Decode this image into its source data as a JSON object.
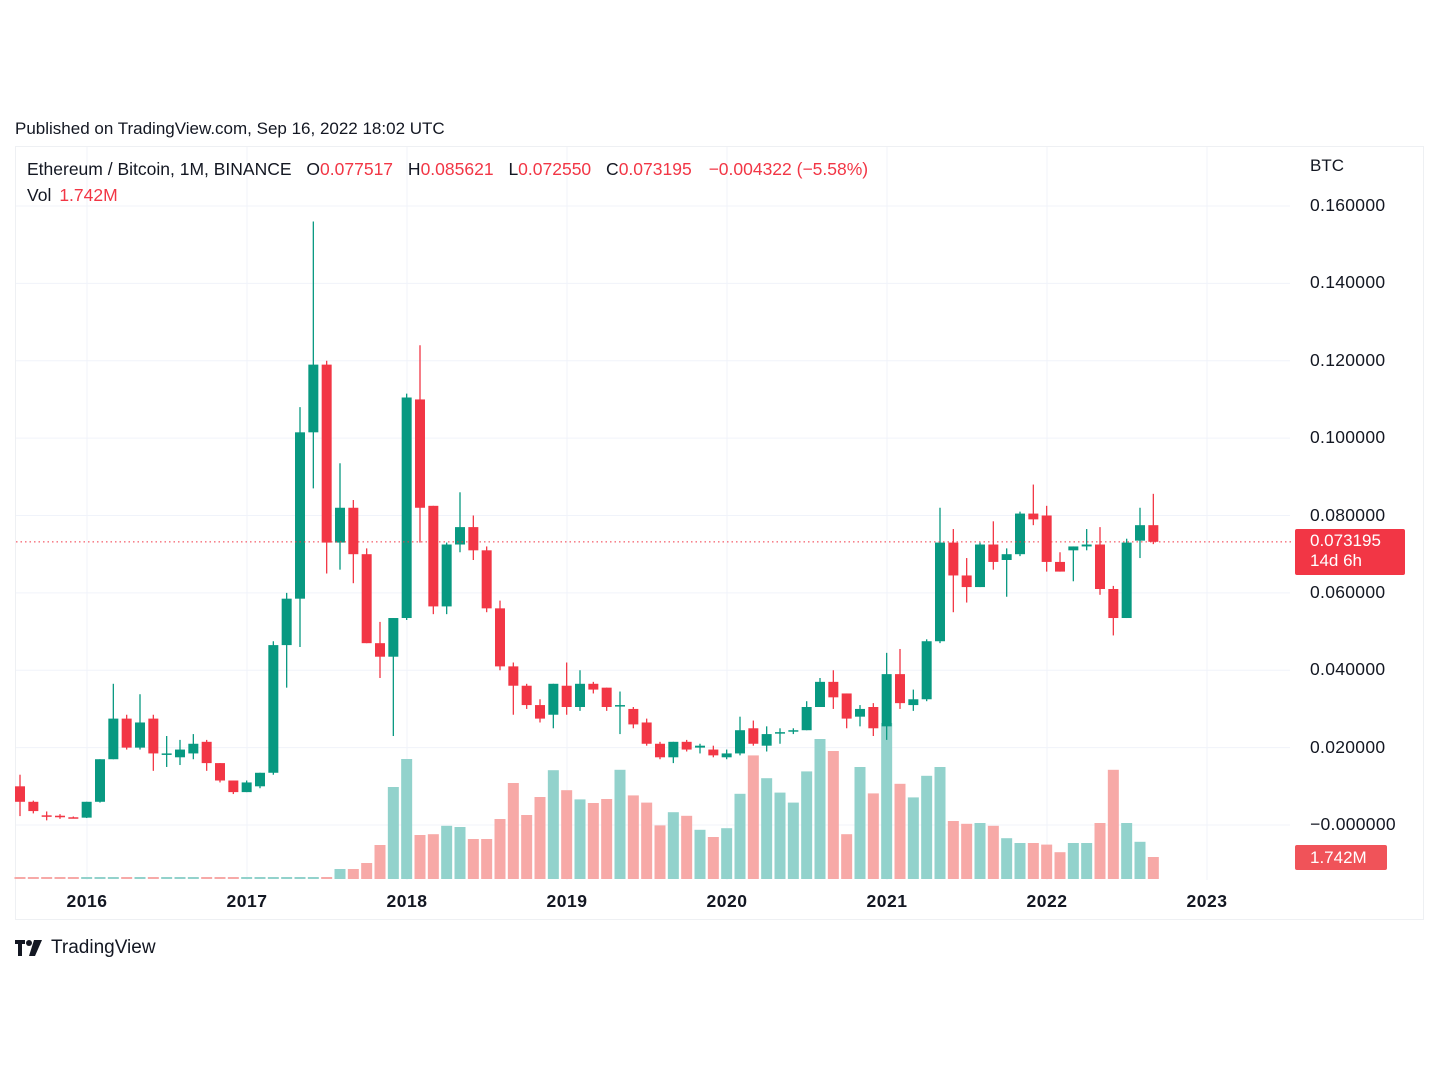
{
  "header": {
    "published": "Published on TradingView.com, Sep 16, 2022 18:02 UTC"
  },
  "legend": {
    "symbol": "Ethereum / Bitcoin, 1M, BINANCE",
    "open_label": "O",
    "open": "0.077517",
    "high_label": "H",
    "high": "0.085621",
    "low_label": "L",
    "low": "0.072550",
    "close_label": "C",
    "close": "0.073195",
    "change": "−0.004322 (−5.58%)",
    "vol_label": "Vol",
    "vol": "1.742M"
  },
  "price_axis": {
    "unit": "BTC",
    "labels": [
      "0.160000",
      "0.140000",
      "0.120000",
      "0.100000",
      "0.080000",
      "0.060000",
      "0.040000",
      "0.020000",
      "−0.000000"
    ],
    "current_price": "0.073195",
    "countdown": "14d 6h",
    "current_volume": "1.742M"
  },
  "time_axis": {
    "labels": [
      "2016",
      "2017",
      "2018",
      "2019",
      "2020",
      "2021",
      "2022",
      "2023"
    ]
  },
  "footer": {
    "brand": "TradingView"
  },
  "colors": {
    "up": "#089981",
    "down": "#f23645",
    "up_vol": "#92d2cc",
    "down_vol": "#f7a9a7",
    "grid": "#f0f3fa",
    "price_line": "#f23645"
  },
  "chart_data": {
    "type": "candlestick",
    "title": "Ethereum / Bitcoin, 1M, BINANCE",
    "ylabel": "BTC",
    "ylim": [
      -0.005,
      0.165
    ],
    "grid": true,
    "start": "2015-08",
    "interval": "1M",
    "x_ticks": [
      "2016",
      "2017",
      "2018",
      "2019",
      "2020",
      "2021",
      "2022",
      "2023"
    ],
    "candles": [
      {
        "o": 0.01,
        "h": 0.013,
        "l": 0.0023,
        "c": 0.006,
        "v": 0.05
      },
      {
        "o": 0.006,
        "h": 0.0063,
        "l": 0.003,
        "c": 0.0036,
        "v": 0.05
      },
      {
        "o": 0.0025,
        "h": 0.0035,
        "l": 0.0012,
        "c": 0.0024,
        "v": 0.05
      },
      {
        "o": 0.0024,
        "h": 0.0028,
        "l": 0.0016,
        "c": 0.002,
        "v": 0.05
      },
      {
        "o": 0.002,
        "h": 0.0022,
        "l": 0.0018,
        "c": 0.0019,
        "v": 0.05
      },
      {
        "o": 0.0019,
        "h": 0.006,
        "l": 0.0018,
        "c": 0.006,
        "v": 0.05
      },
      {
        "o": 0.006,
        "h": 0.017,
        "l": 0.0058,
        "c": 0.017,
        "v": 0.05
      },
      {
        "o": 0.017,
        "h": 0.0365,
        "l": 0.017,
        "c": 0.0275,
        "v": 0.05
      },
      {
        "o": 0.0275,
        "h": 0.0285,
        "l": 0.0195,
        "c": 0.02,
        "v": 0.05
      },
      {
        "o": 0.02,
        "h": 0.0338,
        "l": 0.0195,
        "c": 0.0265,
        "v": 0.05
      },
      {
        "o": 0.0275,
        "h": 0.0285,
        "l": 0.014,
        "c": 0.0185,
        "v": 0.05
      },
      {
        "o": 0.0185,
        "h": 0.023,
        "l": 0.015,
        "c": 0.0185,
        "v": 0.05
      },
      {
        "o": 0.0175,
        "h": 0.022,
        "l": 0.0155,
        "c": 0.0195,
        "v": 0.05
      },
      {
        "o": 0.0185,
        "h": 0.0235,
        "l": 0.017,
        "c": 0.021,
        "v": 0.05
      },
      {
        "o": 0.0215,
        "h": 0.022,
        "l": 0.014,
        "c": 0.016,
        "v": 0.05
      },
      {
        "o": 0.016,
        "h": 0.016,
        "l": 0.011,
        "c": 0.0115,
        "v": 0.05
      },
      {
        "o": 0.0115,
        "h": 0.011,
        "l": 0.008,
        "c": 0.0085,
        "v": 0.05
      },
      {
        "o": 0.0085,
        "h": 0.0115,
        "l": 0.0085,
        "c": 0.011,
        "v": 0.05
      },
      {
        "o": 0.01,
        "h": 0.0135,
        "l": 0.0095,
        "c": 0.0135,
        "v": 0.05
      },
      {
        "o": 0.0135,
        "h": 0.0475,
        "l": 0.013,
        "c": 0.0465,
        "v": 0.05
      },
      {
        "o": 0.0465,
        "h": 0.06,
        "l": 0.0355,
        "c": 0.0585,
        "v": 0.05
      },
      {
        "o": 0.0585,
        "h": 0.108,
        "l": 0.046,
        "c": 0.1015,
        "v": 0.05
      },
      {
        "o": 0.1015,
        "h": 0.156,
        "l": 0.087,
        "c": 0.119,
        "v": 0.05
      },
      {
        "o": 0.119,
        "h": 0.12,
        "l": 0.065,
        "c": 0.073,
        "v": 0.05
      },
      {
        "o": 0.073,
        "h": 0.0935,
        "l": 0.066,
        "c": 0.082,
        "v": 0.25
      },
      {
        "o": 0.082,
        "h": 0.084,
        "l": 0.0625,
        "c": 0.07,
        "v": 0.25
      },
      {
        "o": 0.07,
        "h": 0.0715,
        "l": 0.047,
        "c": 0.047,
        "v": 0.4
      },
      {
        "o": 0.047,
        "h": 0.0525,
        "l": 0.038,
        "c": 0.0435,
        "v": 0.85
      },
      {
        "o": 0.0435,
        "h": 0.0535,
        "l": 0.023,
        "c": 0.0535,
        "v": 2.3
      },
      {
        "o": 0.0535,
        "h": 0.1115,
        "l": 0.053,
        "c": 0.1105,
        "v": 3.0
      },
      {
        "o": 0.11,
        "h": 0.124,
        "l": 0.073,
        "c": 0.082,
        "v": 1.1
      },
      {
        "o": 0.0825,
        "h": 0.0825,
        "l": 0.0545,
        "c": 0.0565,
        "v": 1.12
      },
      {
        "o": 0.0565,
        "h": 0.073,
        "l": 0.0545,
        "c": 0.0725,
        "v": 1.33
      },
      {
        "o": 0.0725,
        "h": 0.086,
        "l": 0.0705,
        "c": 0.077,
        "v": 1.3
      },
      {
        "o": 0.077,
        "h": 0.08,
        "l": 0.0685,
        "c": 0.071,
        "v": 1.0
      },
      {
        "o": 0.071,
        "h": 0.072,
        "l": 0.055,
        "c": 0.056,
        "v": 1.0
      },
      {
        "o": 0.056,
        "h": 0.058,
        "l": 0.04,
        "c": 0.041,
        "v": 1.5
      },
      {
        "o": 0.041,
        "h": 0.042,
        "l": 0.0285,
        "c": 0.036,
        "v": 2.4
      },
      {
        "o": 0.036,
        "h": 0.0365,
        "l": 0.03,
        "c": 0.031,
        "v": 1.6
      },
      {
        "o": 0.031,
        "h": 0.0325,
        "l": 0.0265,
        "c": 0.0275,
        "v": 2.05
      },
      {
        "o": 0.0285,
        "h": 0.0365,
        "l": 0.025,
        "c": 0.0365,
        "v": 2.72
      },
      {
        "o": 0.036,
        "h": 0.042,
        "l": 0.0285,
        "c": 0.0305,
        "v": 2.22
      },
      {
        "o": 0.0305,
        "h": 0.04,
        "l": 0.0295,
        "c": 0.0365,
        "v": 1.99
      },
      {
        "o": 0.0365,
        "h": 0.037,
        "l": 0.034,
        "c": 0.035,
        "v": 1.9
      },
      {
        "o": 0.0355,
        "h": 0.034,
        "l": 0.0295,
        "c": 0.0305,
        "v": 2.0
      },
      {
        "o": 0.031,
        "h": 0.0345,
        "l": 0.0235,
        "c": 0.031,
        "v": 2.73
      },
      {
        "o": 0.03,
        "h": 0.0305,
        "l": 0.025,
        "c": 0.026,
        "v": 2.09
      },
      {
        "o": 0.0265,
        "h": 0.0275,
        "l": 0.0205,
        "c": 0.021,
        "v": 1.91
      },
      {
        "o": 0.021,
        "h": 0.0215,
        "l": 0.017,
        "c": 0.0175,
        "v": 1.34
      },
      {
        "o": 0.0175,
        "h": 0.0215,
        "l": 0.016,
        "c": 0.0215,
        "v": 1.67
      },
      {
        "o": 0.0215,
        "h": 0.022,
        "l": 0.019,
        "c": 0.0195,
        "v": 1.58
      },
      {
        "o": 0.02,
        "h": 0.021,
        "l": 0.0185,
        "c": 0.0205,
        "v": 1.23
      },
      {
        "o": 0.0195,
        "h": 0.0205,
        "l": 0.0175,
        "c": 0.018,
        "v": 1.05
      },
      {
        "o": 0.0175,
        "h": 0.0195,
        "l": 0.017,
        "c": 0.0185,
        "v": 1.27
      },
      {
        "o": 0.0185,
        "h": 0.028,
        "l": 0.018,
        "c": 0.0245,
        "v": 2.13
      },
      {
        "o": 0.025,
        "h": 0.027,
        "l": 0.0205,
        "c": 0.021,
        "v": 3.09
      },
      {
        "o": 0.0205,
        "h": 0.0255,
        "l": 0.019,
        "c": 0.0235,
        "v": 2.52
      },
      {
        "o": 0.024,
        "h": 0.025,
        "l": 0.021,
        "c": 0.024,
        "v": 2.16
      },
      {
        "o": 0.0245,
        "h": 0.025,
        "l": 0.0235,
        "c": 0.0245,
        "v": 1.91
      },
      {
        "o": 0.0245,
        "h": 0.032,
        "l": 0.0245,
        "c": 0.0305,
        "v": 2.69
      },
      {
        "o": 0.0305,
        "h": 0.038,
        "l": 0.0305,
        "c": 0.037,
        "v": 3.5
      },
      {
        "o": 0.037,
        "h": 0.04,
        "l": 0.03,
        "c": 0.033,
        "v": 3.2
      },
      {
        "o": 0.034,
        "h": 0.034,
        "l": 0.025,
        "c": 0.0275,
        "v": 1.12
      },
      {
        "o": 0.028,
        "h": 0.031,
        "l": 0.0255,
        "c": 0.03,
        "v": 2.8
      },
      {
        "o": 0.0305,
        "h": 0.0315,
        "l": 0.023,
        "c": 0.025,
        "v": 2.14
      },
      {
        "o": 0.0255,
        "h": 0.0445,
        "l": 0.022,
        "c": 0.039,
        "v": 3.9
      },
      {
        "o": 0.039,
        "h": 0.0455,
        "l": 0.03,
        "c": 0.0315,
        "v": 2.38
      },
      {
        "o": 0.031,
        "h": 0.035,
        "l": 0.0295,
        "c": 0.0325,
        "v": 2.04
      },
      {
        "o": 0.0325,
        "h": 0.048,
        "l": 0.032,
        "c": 0.0475,
        "v": 2.58
      },
      {
        "o": 0.0475,
        "h": 0.082,
        "l": 0.047,
        "c": 0.073,
        "v": 2.8
      },
      {
        "o": 0.073,
        "h": 0.0765,
        "l": 0.055,
        "c": 0.0645,
        "v": 1.45
      },
      {
        "o": 0.0645,
        "h": 0.069,
        "l": 0.0575,
        "c": 0.0615,
        "v": 1.38
      },
      {
        "o": 0.0615,
        "h": 0.073,
        "l": 0.0615,
        "c": 0.0725,
        "v": 1.4
      },
      {
        "o": 0.0725,
        "h": 0.0785,
        "l": 0.066,
        "c": 0.068,
        "v": 1.33
      },
      {
        "o": 0.0685,
        "h": 0.0715,
        "l": 0.059,
        "c": 0.07,
        "v": 1.02
      },
      {
        "o": 0.07,
        "h": 0.081,
        "l": 0.0695,
        "c": 0.0805,
        "v": 0.9
      },
      {
        "o": 0.0805,
        "h": 0.088,
        "l": 0.0775,
        "c": 0.079,
        "v": 0.9
      },
      {
        "o": 0.08,
        "h": 0.0825,
        "l": 0.0655,
        "c": 0.068,
        "v": 0.86
      },
      {
        "o": 0.068,
        "h": 0.0705,
        "l": 0.0655,
        "c": 0.0655,
        "v": 0.67
      },
      {
        "o": 0.071,
        "h": 0.0715,
        "l": 0.063,
        "c": 0.072,
        "v": 0.9
      },
      {
        "o": 0.072,
        "h": 0.0765,
        "l": 0.071,
        "c": 0.0725,
        "v": 0.9
      },
      {
        "o": 0.0725,
        "h": 0.077,
        "l": 0.0595,
        "c": 0.061,
        "v": 1.4
      },
      {
        "o": 0.061,
        "h": 0.0618,
        "l": 0.049,
        "c": 0.0535,
        "v": 2.73
      },
      {
        "o": 0.0535,
        "h": 0.074,
        "l": 0.0535,
        "c": 0.073,
        "v": 1.4
      },
      {
        "o": 0.0735,
        "h": 0.082,
        "l": 0.069,
        "c": 0.0775,
        "v": 0.93
      },
      {
        "o": 0.0775,
        "h": 0.0856,
        "l": 0.0726,
        "c": 0.0732,
        "v": 0.55
      }
    ]
  }
}
